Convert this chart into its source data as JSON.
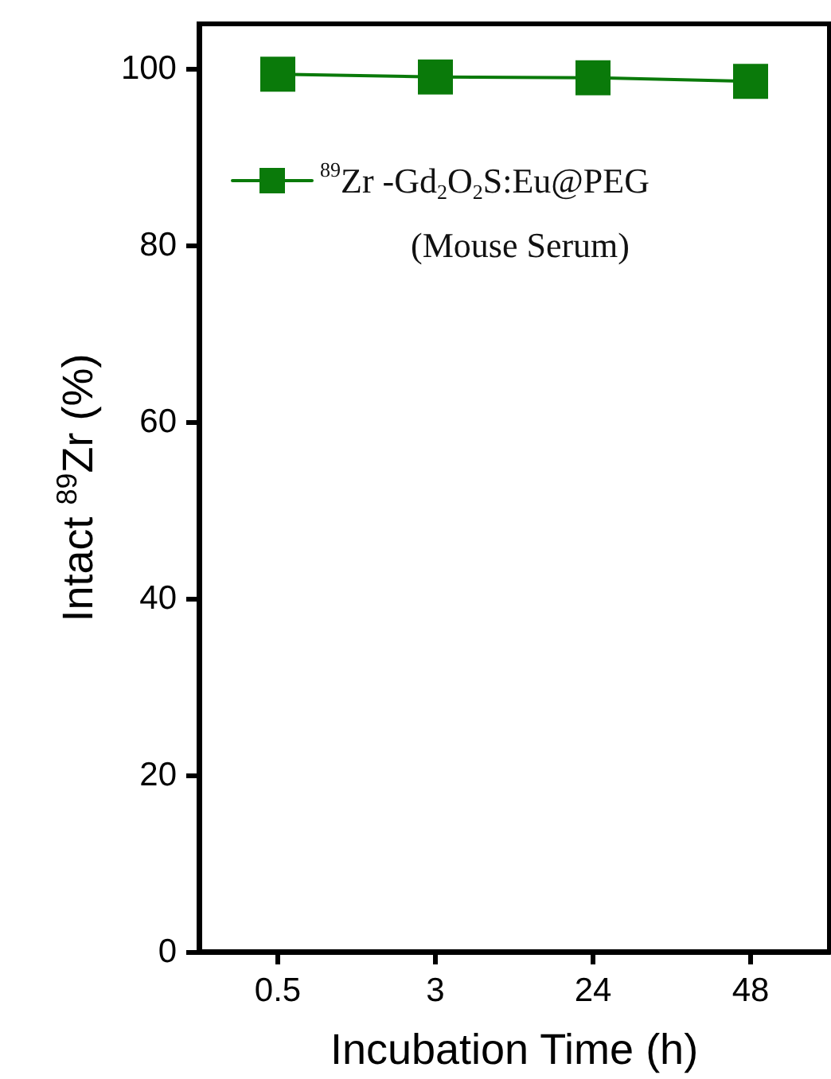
{
  "chart_data": {
    "type": "line",
    "xlabel": "Incubation Time (h)",
    "ylabel": "Intact $^{89}$Zr (%)",
    "categories": [
      "0.5",
      "3",
      "24",
      "48"
    ],
    "series": [
      {
        "name": "$^{89}$Zr -Gd$_{2}$O$_{2}$S:Eu@PEG",
        "color": "#0a7a0a",
        "values": [
          99.3,
          99.0,
          98.9,
          98.5
        ]
      }
    ],
    "ylim": [
      0,
      105
    ],
    "yticks": [
      0,
      20,
      40,
      60,
      80,
      100
    ],
    "annotations": [
      "(Mouse Serum)"
    ],
    "legend": "top left",
    "marker": "square",
    "line_style": "solid",
    "grid": false
  }
}
